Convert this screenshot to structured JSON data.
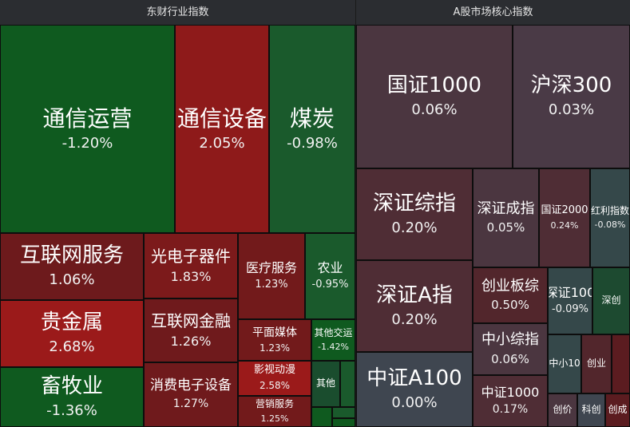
{
  "colors": {
    "up_strong": "#9b1a1a",
    "up": "#7a1717",
    "up_soft": "#5f1a1c",
    "down_strong": "#0f5a1f",
    "down": "#1a4d2e",
    "flat_purple": "#4b3640",
    "flat_purple_2": "#4a3a48",
    "flat_slate": "#3f4650",
    "flat_teal": "#35484a"
  },
  "panels": [
    {
      "title": "东财行业指数",
      "tiles": [
        {
          "name": "通信运营",
          "pct": "-1.20%",
          "color": "#0f5a1f"
        },
        {
          "name": "通信设备",
          "pct": "2.05%",
          "color": "#8e1a1a"
        },
        {
          "name": "煤炭",
          "pct": "-0.98%",
          "color": "#1a5a2c"
        },
        {
          "name": "互联网服务",
          "pct": "1.06%",
          "color": "#6d1a1c"
        },
        {
          "name": "光电子器件",
          "pct": "1.83%",
          "color": "#7c1a1b"
        },
        {
          "name": "医疗服务",
          "pct": "1.23%",
          "color": "#721a1b"
        },
        {
          "name": "农业",
          "pct": "-0.95%",
          "color": "#1a5a2c"
        },
        {
          "name": "贵金属",
          "pct": "2.68%",
          "color": "#9b1a1a"
        },
        {
          "name": "互联网金融",
          "pct": "1.26%",
          "color": "#6f1a1c"
        },
        {
          "name": "平面媒体",
          "pct": "1.23%",
          "color": "#721a1b"
        },
        {
          "name": "其他交运",
          "pct": "-1.42%",
          "color": "#0f5a1f"
        },
        {
          "name": "畜牧业",
          "pct": "-1.36%",
          "color": "#0f5a1f"
        },
        {
          "name": "消费电子设备",
          "pct": "1.27%",
          "color": "#6f1a1c"
        },
        {
          "name": "影视动漫",
          "pct": "2.58%",
          "color": "#9b1a1a"
        },
        {
          "name": "其他",
          "pct": "",
          "color": "#1a4d2e"
        },
        {
          "name": "营销服务",
          "pct": "1.25%",
          "color": "#721a1b"
        },
        {
          "name": "",
          "pct": "",
          "color": "#1a5a2c"
        },
        {
          "name": "",
          "pct": "",
          "color": "#0f5a1f"
        },
        {
          "name": "",
          "pct": "",
          "color": "#1a5a2c"
        },
        {
          "name": "",
          "pct": "",
          "color": "#0f5a1f"
        }
      ]
    },
    {
      "title": "A股市场核心指数",
      "tiles": [
        {
          "name": "国证1000",
          "pct": "0.06%",
          "color": "#4b3640"
        },
        {
          "name": "沪深300",
          "pct": "0.03%",
          "color": "#4a3a46"
        },
        {
          "name": "深证综指",
          "pct": "0.20%",
          "color": "#4f2d35"
        },
        {
          "name": "深证成指",
          "pct": "0.05%",
          "color": "#4b3640"
        },
        {
          "name": "国证2000",
          "pct": "0.24%",
          "color": "#4f2d35"
        },
        {
          "name": "红利指数",
          "pct": "-0.08%",
          "color": "#35484a"
        },
        {
          "name": "深证A指",
          "pct": "0.20%",
          "color": "#4f2d35"
        },
        {
          "name": "创业板综",
          "pct": "0.50%",
          "color": "#52262c"
        },
        {
          "name": "深证100",
          "pct": "-0.09%",
          "color": "#35484a"
        },
        {
          "name": "深创",
          "pct": "",
          "color": "#1d4a30"
        },
        {
          "name": "中小综指",
          "pct": "0.06%",
          "color": "#4b3640"
        },
        {
          "name": "中证A100",
          "pct": "0.00%",
          "color": "#3f4650"
        },
        {
          "name": "中小10",
          "pct": "",
          "color": "#35484a"
        },
        {
          "name": "创业",
          "pct": "",
          "color": "#52262c"
        },
        {
          "name": "",
          "pct": "",
          "color": "#5b1c20"
        },
        {
          "name": "中证1000",
          "pct": "0.17%",
          "color": "#4f2d35"
        },
        {
          "name": "创价",
          "pct": "",
          "color": "#4b3640"
        },
        {
          "name": "科创",
          "pct": "",
          "color": "#3f4650"
        },
        {
          "name": "创成",
          "pct": "",
          "color": "#5b1c20"
        }
      ]
    }
  ],
  "chart_data": {
    "type": "heatmap",
    "series": [
      {
        "name": "东财行业指数",
        "categories": [
          "通信运营",
          "通信设备",
          "煤炭",
          "互联网服务",
          "光电子器件",
          "医疗服务",
          "农业",
          "贵金属",
          "互联网金融",
          "平面媒体",
          "其他交运",
          "畜牧业",
          "消费电子设备",
          "影视动漫",
          "营销服务"
        ],
        "values": [
          -1.2,
          2.05,
          -0.98,
          1.06,
          1.83,
          1.23,
          -0.95,
          2.68,
          1.26,
          1.23,
          -1.42,
          -1.36,
          1.27,
          2.58,
          1.25
        ]
      },
      {
        "name": "A股市场核心指数",
        "categories": [
          "国证1000",
          "沪深300",
          "深证综指",
          "深证成指",
          "国证2000",
          "红利指数",
          "深证A指",
          "创业板综",
          "深证100",
          "中小综指",
          "中证A100",
          "中证1000"
        ],
        "values": [
          0.06,
          0.03,
          0.2,
          0.05,
          0.24,
          -0.08,
          0.2,
          0.5,
          -0.09,
          0.06,
          0.0,
          0.17
        ]
      }
    ]
  }
}
